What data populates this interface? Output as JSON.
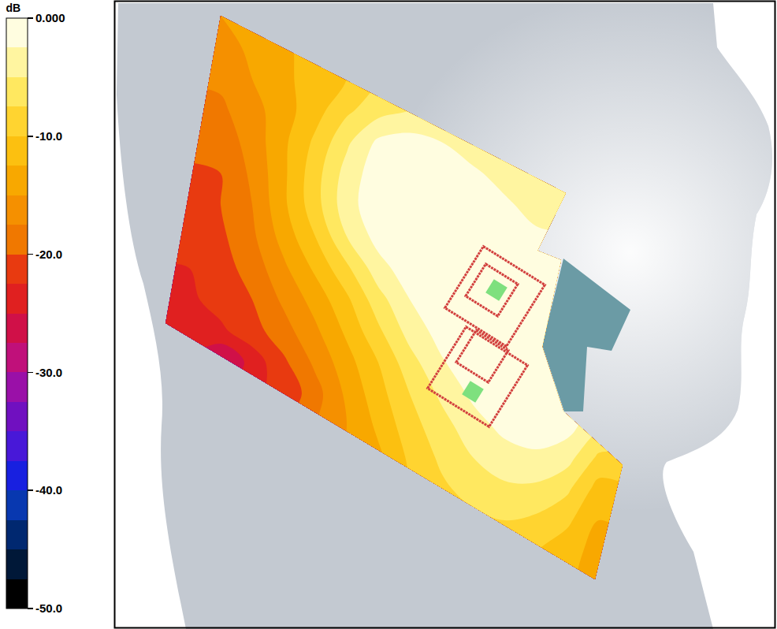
{
  "chart_data": {
    "type": "contour",
    "colorbar_title": "dB",
    "zlim": [
      -50,
      0
    ],
    "zticks": [
      {
        "value": 0,
        "label": "0.000"
      },
      {
        "value": -10,
        "label": "-10.0"
      },
      {
        "value": -20,
        "label": "-20.0"
      },
      {
        "value": -30,
        "label": "-30.0"
      },
      {
        "value": -40,
        "label": "-40.0"
      },
      {
        "value": -50,
        "label": "-50.0"
      }
    ],
    "tick_labels": false,
    "z": [
      [
        null,
        null,
        -15,
        null,
        null,
        null,
        null,
        null,
        null,
        null,
        null,
        null,
        null,
        null,
        null,
        null
      ],
      [
        null,
        null,
        -16,
        -14.5,
        -13,
        null,
        null,
        null,
        null,
        null,
        null,
        null,
        null,
        null,
        null,
        null
      ],
      [
        null,
        null,
        -17,
        -15,
        -13,
        -11.5,
        -10,
        null,
        null,
        null,
        null,
        null,
        null,
        null,
        null,
        null
      ],
      [
        null,
        null,
        -18,
        -16,
        -13.5,
        -11,
        -8,
        -6,
        -5,
        null,
        null,
        null,
        null,
        null,
        null,
        null
      ],
      [
        null,
        null,
        -19,
        -16.5,
        -13,
        -9.5,
        -5.5,
        -2,
        -1.5,
        -2.5,
        -4,
        null,
        null,
        null,
        null,
        null
      ],
      [
        null,
        null,
        -20,
        -17,
        -13,
        -8.5,
        -4,
        -1,
        -0.5,
        -1,
        -2,
        -3.5,
        -5,
        null,
        null,
        null
      ],
      [
        null,
        -22,
        -20,
        -17.5,
        -13,
        -8.5,
        -3.5,
        -0.8,
        -0.3,
        -0.5,
        -1,
        -2,
        -3.5,
        null,
        null,
        null
      ],
      [
        null,
        -22,
        -20.5,
        -18,
        -14,
        -10,
        -5,
        -1.5,
        -0.5,
        -0.3,
        -0.5,
        -1,
        -2,
        null,
        null,
        null
      ],
      [
        null,
        -22.5,
        -21,
        -19,
        -15.5,
        -12,
        -8,
        -3.5,
        -1,
        -0.3,
        -0.2,
        -0.3,
        -1,
        null,
        null,
        null
      ],
      [
        null,
        -23,
        -21.5,
        -20,
        -17,
        -14,
        -10.5,
        -6,
        -2.5,
        -0.6,
        -0.1,
        0,
        -0.5,
        null,
        null,
        null
      ],
      [
        -24,
        -24.5,
        -23,
        -21,
        -18.5,
        -15.5,
        -12,
        -8,
        -4,
        -1.5,
        -0.3,
        0,
        -0.3,
        null,
        null,
        null
      ],
      [
        null,
        null,
        -28,
        -24,
        -20.5,
        -17,
        -13.5,
        -10,
        -6,
        -2.8,
        -0.8,
        -0.1,
        -0.2,
        null,
        null,
        null
      ],
      [
        null,
        null,
        null,
        null,
        -22,
        -18.5,
        -14.5,
        -11,
        -7.5,
        -4.5,
        -2,
        -0.6,
        -0.3,
        null,
        null,
        null
      ],
      [
        null,
        null,
        null,
        null,
        null,
        null,
        -15,
        -12,
        -8.5,
        -6,
        -3.5,
        -1.8,
        -1,
        -1.5,
        null,
        null
      ],
      [
        null,
        null,
        null,
        null,
        null,
        null,
        null,
        -13,
        -9.5,
        -7,
        -5,
        -3.5,
        -3,
        -4,
        -8,
        null
      ],
      [
        null,
        null,
        null,
        null,
        null,
        null,
        null,
        null,
        null,
        -8,
        -6.5,
        -5.5,
        -5.5,
        -7,
        -11,
        null
      ],
      [
        null,
        null,
        null,
        null,
        null,
        null,
        null,
        null,
        null,
        null,
        null,
        -7.5,
        -8,
        -9.5,
        -12.5,
        null
      ],
      [
        null,
        null,
        null,
        null,
        null,
        null,
        null,
        null,
        null,
        null,
        null,
        null,
        -10,
        -11.5,
        -13.5,
        null
      ],
      [
        null,
        null,
        null,
        null,
        null,
        null,
        null,
        null,
        null,
        null,
        null,
        null,
        null,
        null,
        -14,
        null
      ]
    ]
  }
}
